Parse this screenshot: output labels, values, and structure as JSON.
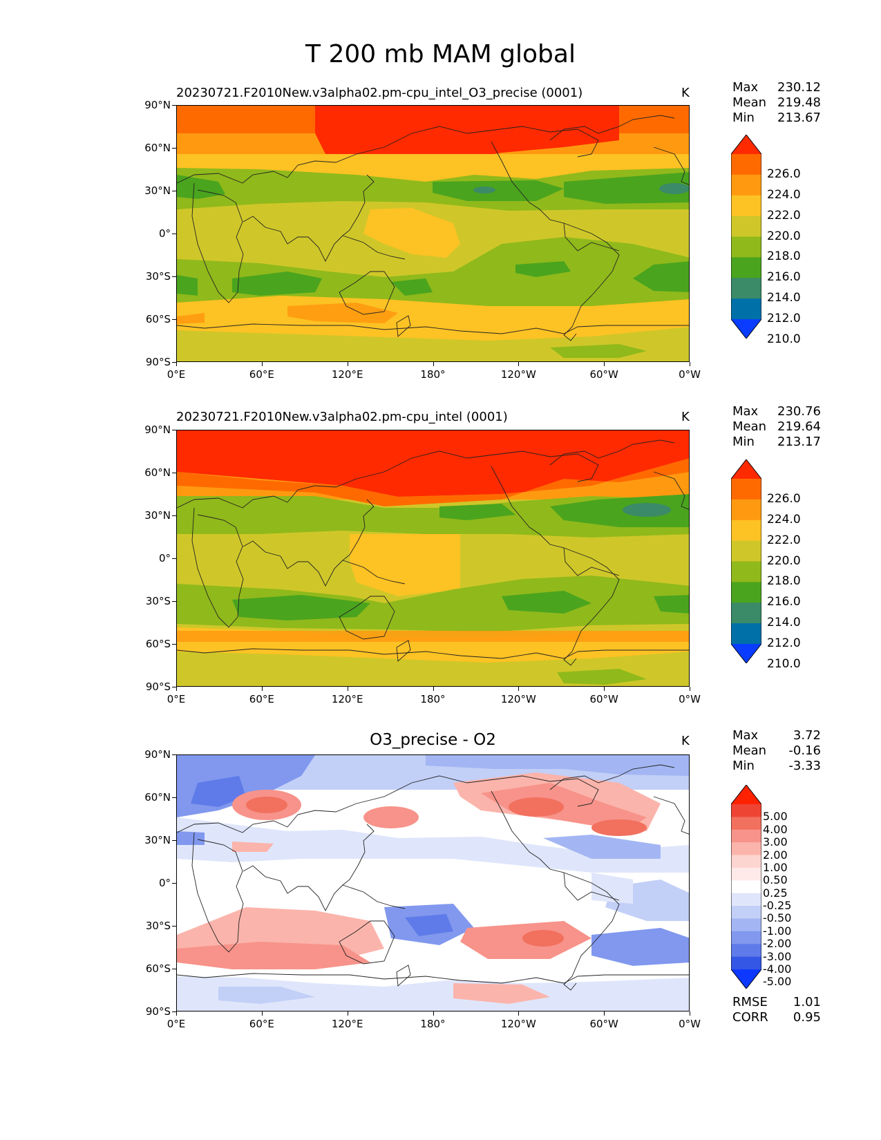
{
  "title": "T 200 mb MAM global",
  "units": "K",
  "xticks": [
    "0°E",
    "60°E",
    "120°E",
    "180°",
    "120°W",
    "60°W",
    "0°W"
  ],
  "yticks": [
    "90°N",
    "60°N",
    "30°N",
    "0°",
    "30°S",
    "60°S",
    "90°S"
  ],
  "panels": [
    {
      "title": "20230721.F2010New.v3alpha02.pm-cpu_intel_O3_precise (0001)",
      "stats": {
        "max_label": "Max",
        "max": "230.12",
        "mean_label": "Mean",
        "mean": "219.48",
        "min_label": "Min",
        "min": "213.67"
      }
    },
    {
      "title": "20230721.F2010New.v3alpha02.pm-cpu_intel (0001)",
      "stats": {
        "max_label": "Max",
        "max": "230.76",
        "mean_label": "Mean",
        "mean": "219.64",
        "min_label": "Min",
        "min": "213.17"
      }
    },
    {
      "title": "O3_precise - O2",
      "stats": {
        "max_label": "Max",
        "max": "3.72",
        "mean_label": "Mean",
        "mean": "-0.16",
        "min_label": "Min",
        "min": "-3.33"
      },
      "metrics": {
        "rmse_label": "RMSE",
        "rmse": "1.01",
        "corr_label": "CORR",
        "corr": "0.95"
      }
    }
  ],
  "colorbar_abs": {
    "labels": [
      "226.0",
      "224.0",
      "222.0",
      "220.0",
      "218.0",
      "216.0",
      "214.0",
      "212.0",
      "210.0"
    ],
    "colors": [
      "#ff2a00",
      "#ff6a00",
      "#ff9a10",
      "#fdc224",
      "#cfc729",
      "#90b91b",
      "#4aa41e",
      "#3b8a68",
      "#0070a8",
      "#0a3cff"
    ]
  },
  "colorbar_diff": {
    "labels": [
      "5.00",
      "4.00",
      "3.00",
      "2.00",
      "1.00",
      "0.50",
      "0.25",
      "-0.25",
      "-0.50",
      "-1.00",
      "-2.00",
      "-3.00",
      "-4.00",
      "-5.00"
    ],
    "colors": [
      "#ff2200",
      "#ee4433",
      "#f2705e",
      "#f7938a",
      "#fbb4ab",
      "#fdd5d0",
      "#feeae8",
      "#ffffff",
      "#dfe6fb",
      "#c2cff7",
      "#a3b6f3",
      "#8198ee",
      "#5e7be9",
      "#3557e6",
      "#0d38ff"
    ]
  }
}
